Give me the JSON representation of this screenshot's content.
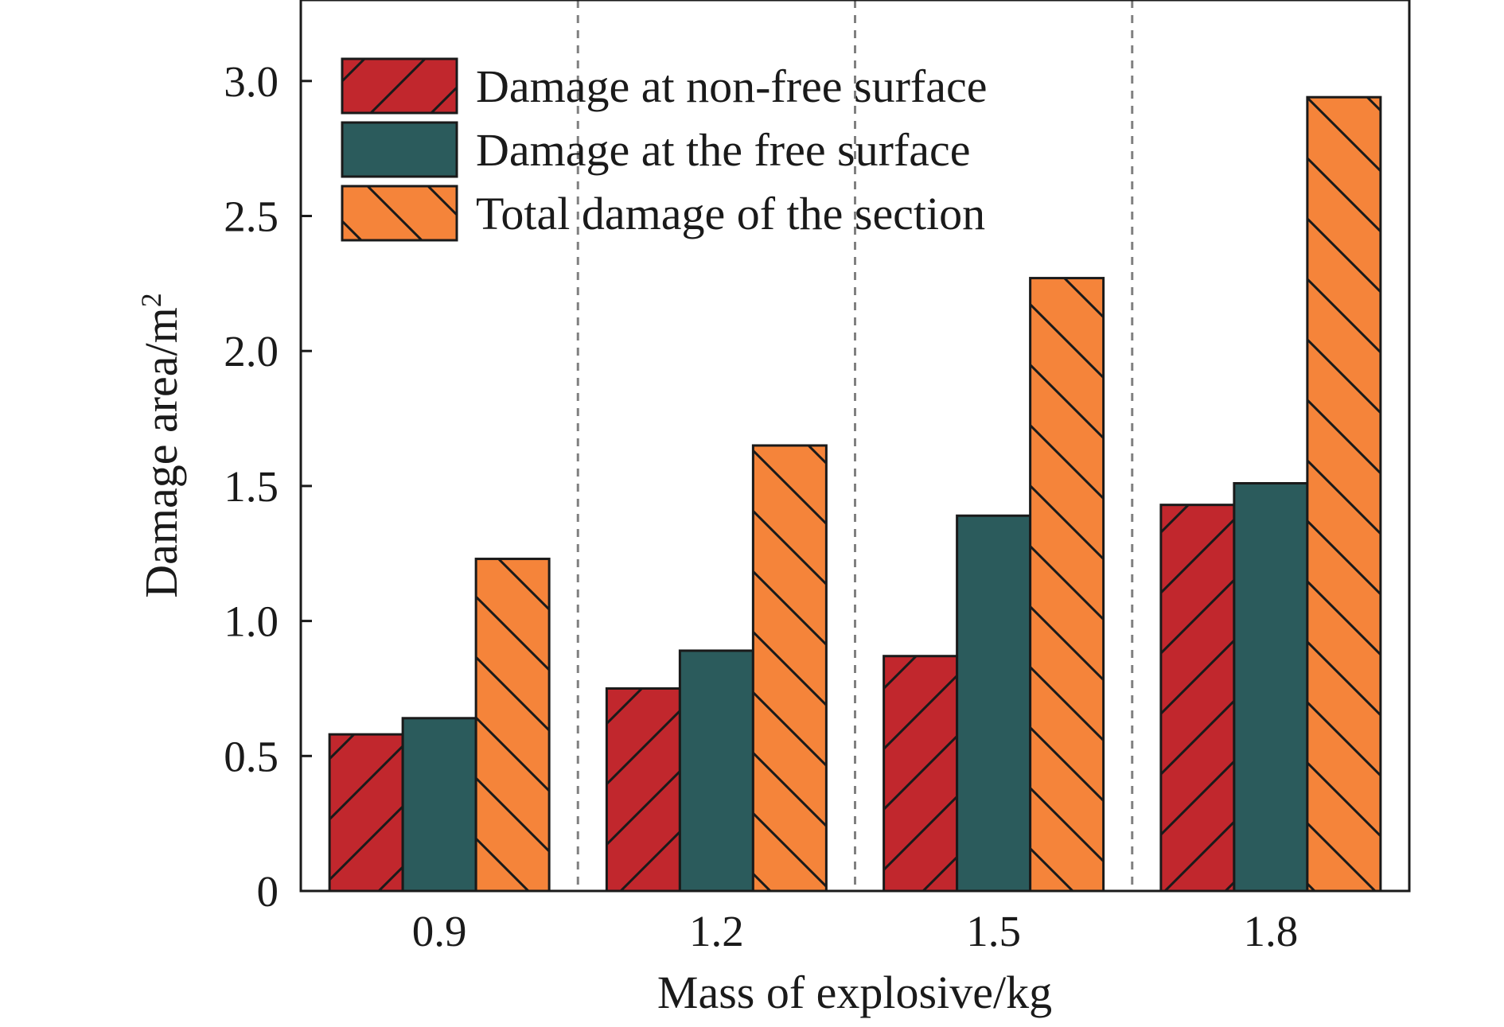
{
  "chart_data": {
    "type": "bar",
    "title": "",
    "xlabel": "Mass of explosive/kg",
    "ylabel": "Damage area/m",
    "ylabel_superscript": "2",
    "categories": [
      "0.9",
      "1.2",
      "1.5",
      "1.8"
    ],
    "ylim": [
      0,
      3.3
    ],
    "yticks": [
      0,
      0.5,
      1.0,
      1.5,
      2.0,
      2.5,
      3.0
    ],
    "ytick_labels": [
      "0",
      "0.5",
      "1.0",
      "1.5",
      "2.0",
      "2.5",
      "3.0"
    ],
    "legend_position": "top-left",
    "grid": "vertical dashed separators between groups",
    "series": [
      {
        "name": "Damage at non-free surface",
        "values": [
          0.58,
          0.75,
          0.87,
          1.43
        ],
        "color": "#c1272d",
        "hatch": "forward"
      },
      {
        "name": "Damage at the free surface",
        "values": [
          0.64,
          0.89,
          1.39,
          1.51
        ],
        "color": "#2b5b5c",
        "hatch": "none"
      },
      {
        "name": "Total damage of the section",
        "values": [
          1.23,
          1.65,
          2.27,
          2.94
        ],
        "color": "#f5843a",
        "hatch": "back"
      }
    ]
  }
}
